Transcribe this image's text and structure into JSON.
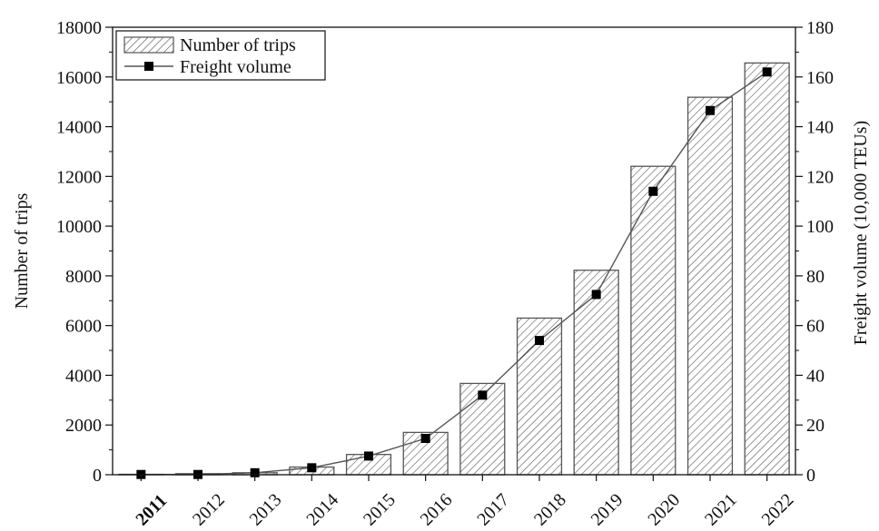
{
  "chart_data": {
    "type": "bar",
    "categories": [
      "2011",
      "2012",
      "2013",
      "2014",
      "2015",
      "2016",
      "2017",
      "2018",
      "2019",
      "2020",
      "2021",
      "2022"
    ],
    "series": [
      {
        "name": "Number of trips",
        "type": "bar",
        "axis": "left",
        "values": [
          17,
          42,
          80,
          308,
          815,
          1702,
          3673,
          6300,
          8225,
          12406,
          15183,
          16562
        ]
      },
      {
        "name": "Freight volume",
        "type": "line",
        "axis": "right",
        "values": [
          0.1,
          0.1,
          0.8,
          2.8,
          7.5,
          14.6,
          32.0,
          54.0,
          72.5,
          114.0,
          146.5,
          162.0
        ]
      }
    ],
    "ylabel": "Number of trips",
    "y2label": "Freight volume (10,000 TEUs)",
    "ylim": [
      0,
      18000
    ],
    "y2lim": [
      0,
      180
    ],
    "yticks": [
      "0",
      "2000",
      "4000",
      "6000",
      "8000",
      "10000",
      "12000",
      "14000",
      "16000",
      "18000"
    ],
    "y2ticks": [
      "0",
      "20",
      "40",
      "60",
      "80",
      "100",
      "120",
      "140",
      "160",
      "180"
    ],
    "legend_position": "top-left",
    "grid": false,
    "colors": {
      "bar_fill": "#ffffff",
      "bar_hatch": "#555555",
      "line": "#555555",
      "marker": "#000000",
      "axis": "#111111"
    }
  }
}
